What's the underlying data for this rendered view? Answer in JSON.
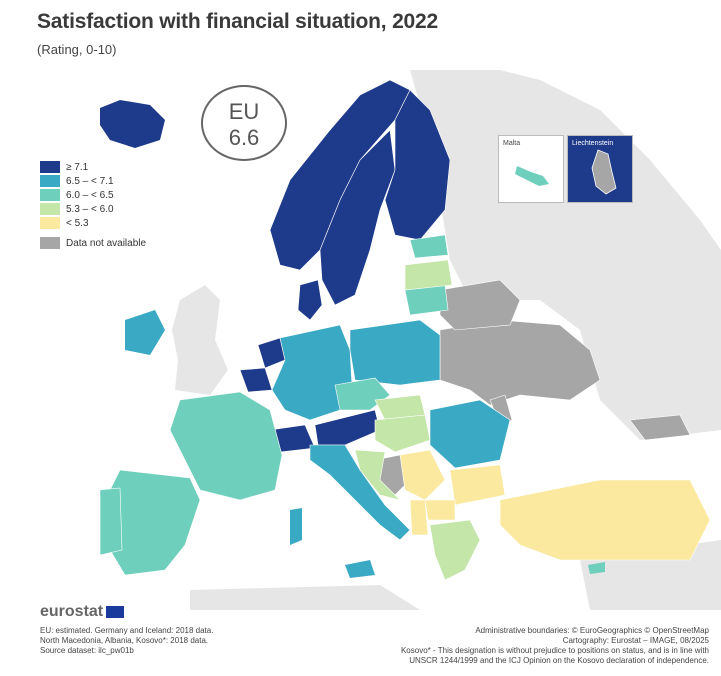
{
  "title": "Satisfaction with financial situation, 2022",
  "subtitle": "(Rating, 0-10)",
  "eu_badge": {
    "label": "EU",
    "value": "6.6"
  },
  "legend": [
    {
      "label": "≥ 7.1",
      "color": "#1e3a8a"
    },
    {
      "label": "6.5 – < 7.1",
      "color": "#3aa9c4"
    },
    {
      "label": "6.0 – < 6.5",
      "color": "#6fcfbd"
    },
    {
      "label": "5.3 – < 6.0",
      "color": "#c4e6a8"
    },
    {
      "label": "< 5.3",
      "color": "#fbe9a0"
    }
  ],
  "legend_na": {
    "label": "Data not available",
    "color": "#a6a6a6"
  },
  "insets": {
    "malta": "Malta",
    "liechtenstein": "Liechtenstein"
  },
  "brand": "eurostat",
  "footer_left": [
    "EU: estimated. Germany and Iceland: 2018 data.",
    "North Macedonia, Albania, Kosovo*: 2018 data.",
    "Source dataset: ilc_pw01b"
  ],
  "footer_right": [
    "Administrative boundaries: © EuroGeographics © OpenStreetMap",
    "Cartography: Eurostat – IMAGE, 08/2025",
    "Kosovo* - This designation is without prejudice to positions on status, and is in line with",
    "UNSCR 1244/1999 and the ICJ Opinion on the Kosovo declaration of independence."
  ]
}
